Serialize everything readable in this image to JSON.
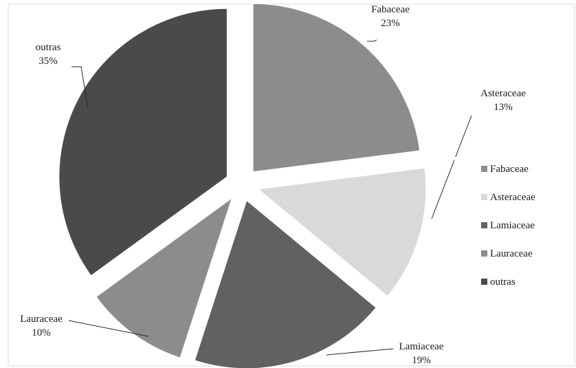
{
  "chart_data": {
    "type": "pie",
    "exploded": true,
    "categories": [
      "Fabaceae",
      "Asteraceae",
      "Lamiaceae",
      "Lauraceae",
      "outras"
    ],
    "values": [
      23,
      13,
      19,
      10,
      35
    ],
    "value_labels": [
      "23%",
      "13%",
      "19%",
      "10%",
      "35%"
    ],
    "colors": [
      "#8c8c8c",
      "#d9d9d9",
      "#616161",
      "#8c8c8c",
      "#4a4a4a"
    ],
    "legend": {
      "position": "right",
      "entries": [
        "Fabaceae",
        "Asteraceae",
        "Lamiaceae",
        "Lauraceae",
        "outras"
      ]
    }
  }
}
